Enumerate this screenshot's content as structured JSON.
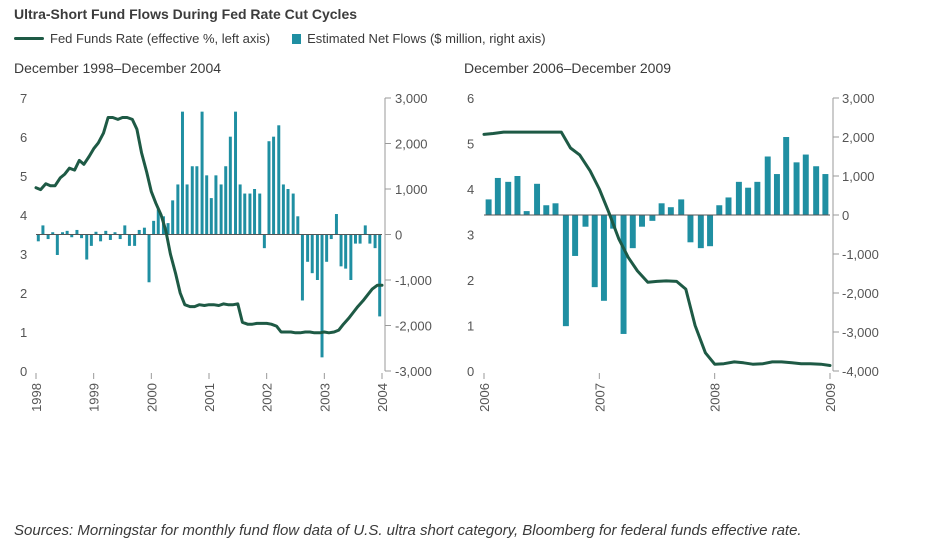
{
  "title": "Ultra-Short Fund Flows During Fed Rate Cut Cycles",
  "legend": {
    "rate_label": "Fed Funds Rate (effective %, left axis)",
    "flows_label": "Estimated Net Flows ($ million, right axis)"
  },
  "colors": {
    "rate": "#1e5a45",
    "flows": "#1f8fa2",
    "axis": "#9a9a9a"
  },
  "source": "Sources: Morningstar for monthly fund flow data of U.S. ultra short category, Bloomberg for federal funds effective rate.",
  "chart_data": [
    {
      "type": "bar+line",
      "subtitle": "December 1998–December 2004",
      "left_axis": {
        "min": 0,
        "max": 7,
        "ticks": [
          "0",
          "1",
          "2",
          "3",
          "4",
          "5",
          "6",
          "7"
        ]
      },
      "right_axis": {
        "min": -3000,
        "max": 3000,
        "ticks": [
          "-3,000",
          "-2,000",
          "-1,000",
          "0",
          "1,000",
          "2,000",
          "3,000"
        ]
      },
      "x_axis": {
        "min": 1998,
        "max": 2004,
        "ticks": [
          "1998",
          "1999",
          "2000",
          "2001",
          "2002",
          "2003",
          "2004"
        ]
      },
      "series": [
        {
          "name": "Fed Funds Rate (effective %, left axis)",
          "type": "line",
          "x": [
            1998,
            1998.08,
            1998.17,
            1998.25,
            1998.33,
            1998.42,
            1998.5,
            1998.58,
            1998.67,
            1998.75,
            1998.83,
            1998.92,
            1999,
            1999.08,
            1999.17,
            1999.25,
            1999.33,
            1999.42,
            1999.5,
            1999.58,
            1999.67,
            1999.75,
            1999.83,
            1999.92,
            2000,
            2000.08,
            2000.17,
            2000.25,
            2000.33,
            2000.42,
            2000.5,
            2000.58,
            2000.67,
            2000.75,
            2000.83,
            2000.92,
            2001,
            2001.08,
            2001.17,
            2001.25,
            2001.33,
            2001.42,
            2001.5,
            2001.58,
            2001.67,
            2001.75,
            2001.83,
            2001.92,
            2002,
            2002.08,
            2002.17,
            2002.25,
            2002.33,
            2002.42,
            2002.5,
            2002.58,
            2002.67,
            2002.75,
            2002.83,
            2002.92,
            2003,
            2003.08,
            2003.17,
            2003.25,
            2003.33,
            2003.42,
            2003.5,
            2003.58,
            2003.67,
            2003.75,
            2003.83,
            2003.92,
            2004
          ],
          "values": [
            4.7,
            4.65,
            4.8,
            4.75,
            4.75,
            4.95,
            5.05,
            5.2,
            5.15,
            5.4,
            5.3,
            5.5,
            5.7,
            5.85,
            6.1,
            6.5,
            6.5,
            6.45,
            6.5,
            6.5,
            6.45,
            6.2,
            5.6,
            5.1,
            4.6,
            4.3,
            4.0,
            3.6,
            3.0,
            2.5,
            2.0,
            1.7,
            1.65,
            1.65,
            1.7,
            1.68,
            1.7,
            1.7,
            1.68,
            1.72,
            1.7,
            1.7,
            1.72,
            1.25,
            1.2,
            1.2,
            1.22,
            1.22,
            1.22,
            1.2,
            1.15,
            1.0,
            1.0,
            1.0,
            0.98,
            0.98,
            1.0,
            1.0,
            0.98,
            0.98,
            1.0,
            0.98,
            1.0,
            1.05,
            1.2,
            1.35,
            1.5,
            1.65,
            1.8,
            1.95,
            2.1,
            2.2,
            2.2
          ]
        },
        {
          "name": "Estimated Net Flows ($ million, right axis)",
          "type": "bar",
          "x": [
            1998.04,
            1998.12,
            1998.21,
            1998.29,
            1998.37,
            1998.46,
            1998.54,
            1998.62,
            1998.71,
            1998.79,
            1998.88,
            1998.96,
            1999.04,
            1999.12,
            1999.21,
            1999.29,
            1999.37,
            1999.46,
            1999.54,
            1999.62,
            1999.71,
            1999.79,
            1999.88,
            1999.96,
            2000.04,
            2000.12,
            2000.21,
            2000.29,
            2000.37,
            2000.46,
            2000.54,
            2000.62,
            2000.71,
            2000.79,
            2000.88,
            2000.96,
            2001.04,
            2001.12,
            2001.21,
            2001.29,
            2001.37,
            2001.46,
            2001.54,
            2001.62,
            2001.71,
            2001.79,
            2001.88,
            2001.96,
            2002.04,
            2002.12,
            2002.21,
            2002.29,
            2002.37,
            2002.46,
            2002.54,
            2002.62,
            2002.71,
            2002.79,
            2002.88,
            2002.96,
            2003.04,
            2003.12,
            2003.21,
            2003.29,
            2003.37,
            2003.46,
            2003.54,
            2003.62,
            2003.71,
            2003.79,
            2003.88,
            2003.96
          ],
          "values": [
            -150,
            200,
            -100,
            50,
            -450,
            50,
            80,
            -60,
            100,
            -80,
            -550,
            -250,
            60,
            -150,
            80,
            -120,
            50,
            -100,
            200,
            -250,
            -250,
            100,
            150,
            -1050,
            300,
            550,
            400,
            250,
            750,
            1100,
            2700,
            1100,
            1500,
            1500,
            2700,
            1300,
            800,
            1300,
            1100,
            1500,
            2150,
            2700,
            1100,
            900,
            900,
            1000,
            900,
            -300,
            2050,
            2150,
            2400,
            1100,
            1000,
            900,
            400,
            -1450,
            -600,
            -850,
            -1000,
            -2700,
            -600,
            -100,
            450,
            -700,
            -750,
            -1000,
            -200,
            -200,
            200,
            -200,
            -300,
            -1800
          ]
        }
      ]
    },
    {
      "type": "bar+line",
      "subtitle": "December 2006–December 2009",
      "left_axis": {
        "min": 0,
        "max": 6,
        "ticks": [
          "0",
          "1",
          "2",
          "3",
          "4",
          "5",
          "6"
        ]
      },
      "right_axis": {
        "min": -4000,
        "max": 3000,
        "ticks": [
          "-4,000",
          "-3,000",
          "-2,000",
          "-1,000",
          "0",
          "1,000",
          "2,000",
          "3,000"
        ]
      },
      "x_axis": {
        "min": 2006,
        "max": 2009,
        "ticks": [
          "2006",
          "2007",
          "2008",
          "2009"
        ]
      },
      "series": [
        {
          "name": "Fed Funds Rate (effective %, left axis)",
          "type": "line",
          "x": [
            2006,
            2006.08,
            2006.17,
            2006.25,
            2006.33,
            2006.42,
            2006.5,
            2006.58,
            2006.67,
            2006.75,
            2006.83,
            2006.92,
            2007,
            2007.08,
            2007.17,
            2007.25,
            2007.33,
            2007.42,
            2007.5,
            2007.58,
            2007.67,
            2007.75,
            2007.83,
            2007.92,
            2008,
            2008.08,
            2008.17,
            2008.25,
            2008.33,
            2008.42,
            2008.5,
            2008.58,
            2008.67,
            2008.75,
            2008.83,
            2008.92,
            2009
          ],
          "values": [
            5.2,
            5.22,
            5.25,
            5.25,
            5.25,
            5.25,
            5.25,
            5.25,
            5.25,
            4.9,
            4.75,
            4.4,
            4.0,
            3.5,
            2.9,
            2.5,
            2.2,
            1.95,
            1.97,
            1.98,
            1.97,
            1.8,
            1.0,
            0.4,
            0.15,
            0.16,
            0.2,
            0.18,
            0.15,
            0.16,
            0.2,
            0.2,
            0.18,
            0.16,
            0.16,
            0.15,
            0.12
          ]
        },
        {
          "name": "Estimated Net Flows ($ million, right axis)",
          "type": "bar",
          "x": [
            2006.04,
            2006.12,
            2006.21,
            2006.29,
            2006.37,
            2006.46,
            2006.54,
            2006.62,
            2006.71,
            2006.79,
            2006.88,
            2006.96,
            2007.04,
            2007.12,
            2007.21,
            2007.29,
            2007.37,
            2007.46,
            2007.54,
            2007.62,
            2007.71,
            2007.79,
            2007.88,
            2007.96,
            2008.04,
            2008.12,
            2008.21,
            2008.29,
            2008.37,
            2008.46,
            2008.54,
            2008.62,
            2008.71,
            2008.79,
            2008.88,
            2008.96
          ],
          "values": [
            400,
            950,
            850,
            1000,
            100,
            800,
            250,
            300,
            -2850,
            -1050,
            -300,
            -1850,
            -2200,
            -350,
            -3050,
            -850,
            -300,
            -150,
            300,
            200,
            400,
            -700,
            -850,
            -800,
            250,
            450,
            850,
            700,
            850,
            1500,
            1050,
            2000,
            1350,
            1550,
            1250,
            1050
          ]
        }
      ]
    }
  ]
}
